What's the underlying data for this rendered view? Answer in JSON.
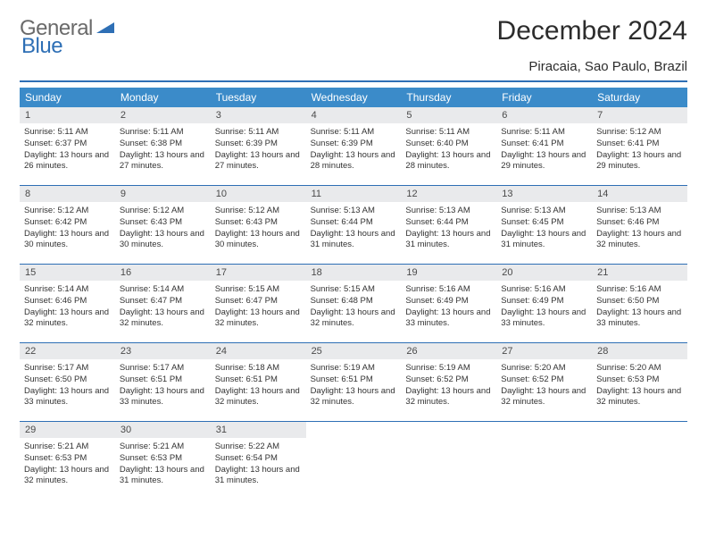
{
  "brand": {
    "part1": "General",
    "part2": "Blue"
  },
  "title": "December 2024",
  "location": "Piracaia, Sao Paulo, Brazil",
  "colors": {
    "header_bg": "#3b8bc9",
    "border": "#2e6fb5",
    "daynum_bg": "#e9eaec",
    "text": "#333333",
    "title_text": "#2c2c2c"
  },
  "weekdays": [
    "Sunday",
    "Monday",
    "Tuesday",
    "Wednesday",
    "Thursday",
    "Friday",
    "Saturday"
  ],
  "days": [
    {
      "n": "1",
      "sunrise": "5:11 AM",
      "sunset": "6:37 PM",
      "daylight": "13 hours and 26 minutes."
    },
    {
      "n": "2",
      "sunrise": "5:11 AM",
      "sunset": "6:38 PM",
      "daylight": "13 hours and 27 minutes."
    },
    {
      "n": "3",
      "sunrise": "5:11 AM",
      "sunset": "6:39 PM",
      "daylight": "13 hours and 27 minutes."
    },
    {
      "n": "4",
      "sunrise": "5:11 AM",
      "sunset": "6:39 PM",
      "daylight": "13 hours and 28 minutes."
    },
    {
      "n": "5",
      "sunrise": "5:11 AM",
      "sunset": "6:40 PM",
      "daylight": "13 hours and 28 minutes."
    },
    {
      "n": "6",
      "sunrise": "5:11 AM",
      "sunset": "6:41 PM",
      "daylight": "13 hours and 29 minutes."
    },
    {
      "n": "7",
      "sunrise": "5:12 AM",
      "sunset": "6:41 PM",
      "daylight": "13 hours and 29 minutes."
    },
    {
      "n": "8",
      "sunrise": "5:12 AM",
      "sunset": "6:42 PM",
      "daylight": "13 hours and 30 minutes."
    },
    {
      "n": "9",
      "sunrise": "5:12 AM",
      "sunset": "6:43 PM",
      "daylight": "13 hours and 30 minutes."
    },
    {
      "n": "10",
      "sunrise": "5:12 AM",
      "sunset": "6:43 PM",
      "daylight": "13 hours and 30 minutes."
    },
    {
      "n": "11",
      "sunrise": "5:13 AM",
      "sunset": "6:44 PM",
      "daylight": "13 hours and 31 minutes."
    },
    {
      "n": "12",
      "sunrise": "5:13 AM",
      "sunset": "6:44 PM",
      "daylight": "13 hours and 31 minutes."
    },
    {
      "n": "13",
      "sunrise": "5:13 AM",
      "sunset": "6:45 PM",
      "daylight": "13 hours and 31 minutes."
    },
    {
      "n": "14",
      "sunrise": "5:13 AM",
      "sunset": "6:46 PM",
      "daylight": "13 hours and 32 minutes."
    },
    {
      "n": "15",
      "sunrise": "5:14 AM",
      "sunset": "6:46 PM",
      "daylight": "13 hours and 32 minutes."
    },
    {
      "n": "16",
      "sunrise": "5:14 AM",
      "sunset": "6:47 PM",
      "daylight": "13 hours and 32 minutes."
    },
    {
      "n": "17",
      "sunrise": "5:15 AM",
      "sunset": "6:47 PM",
      "daylight": "13 hours and 32 minutes."
    },
    {
      "n": "18",
      "sunrise": "5:15 AM",
      "sunset": "6:48 PM",
      "daylight": "13 hours and 32 minutes."
    },
    {
      "n": "19",
      "sunrise": "5:16 AM",
      "sunset": "6:49 PM",
      "daylight": "13 hours and 33 minutes."
    },
    {
      "n": "20",
      "sunrise": "5:16 AM",
      "sunset": "6:49 PM",
      "daylight": "13 hours and 33 minutes."
    },
    {
      "n": "21",
      "sunrise": "5:16 AM",
      "sunset": "6:50 PM",
      "daylight": "13 hours and 33 minutes."
    },
    {
      "n": "22",
      "sunrise": "5:17 AM",
      "sunset": "6:50 PM",
      "daylight": "13 hours and 33 minutes."
    },
    {
      "n": "23",
      "sunrise": "5:17 AM",
      "sunset": "6:51 PM",
      "daylight": "13 hours and 33 minutes."
    },
    {
      "n": "24",
      "sunrise": "5:18 AM",
      "sunset": "6:51 PM",
      "daylight": "13 hours and 32 minutes."
    },
    {
      "n": "25",
      "sunrise": "5:19 AM",
      "sunset": "6:51 PM",
      "daylight": "13 hours and 32 minutes."
    },
    {
      "n": "26",
      "sunrise": "5:19 AM",
      "sunset": "6:52 PM",
      "daylight": "13 hours and 32 minutes."
    },
    {
      "n": "27",
      "sunrise": "5:20 AM",
      "sunset": "6:52 PM",
      "daylight": "13 hours and 32 minutes."
    },
    {
      "n": "28",
      "sunrise": "5:20 AM",
      "sunset": "6:53 PM",
      "daylight": "13 hours and 32 minutes."
    },
    {
      "n": "29",
      "sunrise": "5:21 AM",
      "sunset": "6:53 PM",
      "daylight": "13 hours and 32 minutes."
    },
    {
      "n": "30",
      "sunrise": "5:21 AM",
      "sunset": "6:53 PM",
      "daylight": "13 hours and 31 minutes."
    },
    {
      "n": "31",
      "sunrise": "5:22 AM",
      "sunset": "6:54 PM",
      "daylight": "13 hours and 31 minutes."
    }
  ],
  "labels": {
    "sunrise": "Sunrise:",
    "sunset": "Sunset:",
    "daylight": "Daylight:"
  }
}
